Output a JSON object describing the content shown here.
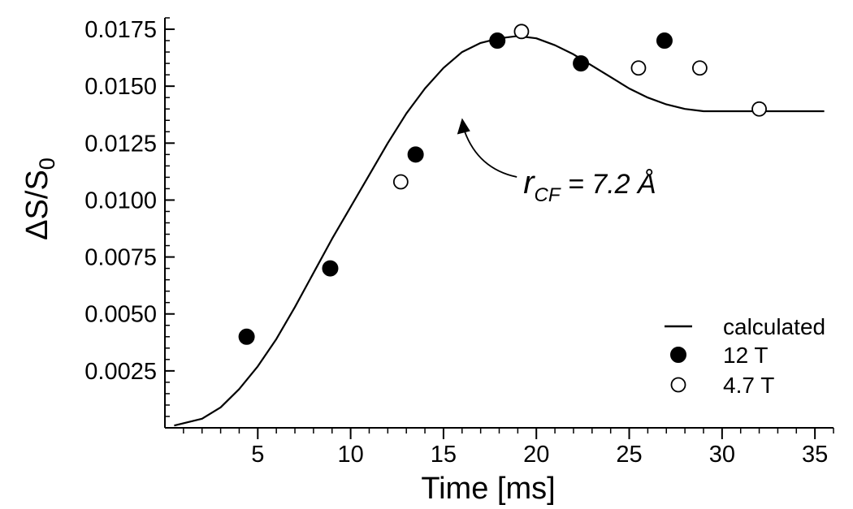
{
  "chart_data": {
    "type": "scatter",
    "title": "",
    "xlabel": "Time [ms]",
    "ylabel": {
      "main": "ΔS/S",
      "sub": "0"
    },
    "xlim": [
      0,
      36
    ],
    "ylim": [
      0,
      0.018
    ],
    "x_ticks": [
      5,
      10,
      15,
      20,
      25,
      30,
      35
    ],
    "x_tick_labels": [
      "5",
      "10",
      "15",
      "20",
      "25",
      "30",
      "35"
    ],
    "y_ticks": [
      0.0025,
      0.005,
      0.0075,
      0.01,
      0.0125,
      0.015,
      0.0175
    ],
    "y_tick_labels": [
      "0.0025",
      "0.0050",
      "0.0075",
      "0.0100",
      "0.0125",
      "0.0150",
      "0.0175"
    ],
    "grid": false,
    "legend_position": "bottom-right",
    "series": [
      {
        "name": "calculated",
        "kind": "line",
        "x": [
          0.5,
          2,
          3,
          4,
          5,
          6,
          7,
          8,
          9,
          10,
          11,
          12,
          13,
          14,
          15,
          16,
          17,
          18,
          19,
          20,
          21,
          22,
          23,
          24,
          25,
          26,
          27,
          28,
          29,
          30,
          31,
          32,
          33,
          34,
          35.5
        ],
        "y": [
          0.0001,
          0.0004,
          0.0009,
          0.0017,
          0.0027,
          0.0039,
          0.0053,
          0.0068,
          0.0083,
          0.0097,
          0.0111,
          0.0125,
          0.0138,
          0.0149,
          0.0158,
          0.0165,
          0.0169,
          0.0171,
          0.0172,
          0.0171,
          0.0168,
          0.0164,
          0.0159,
          0.0154,
          0.0149,
          0.0145,
          0.0142,
          0.014,
          0.0139,
          0.0139,
          0.0139,
          0.0139,
          0.0139,
          0.0139,
          0.0139
        ]
      },
      {
        "name": "12 T",
        "kind": "scatter",
        "marker": "filled-circle",
        "x": [
          4.4,
          8.9,
          13.5,
          17.9,
          22.4,
          26.9
        ],
        "y": [
          0.004,
          0.007,
          0.012,
          0.017,
          0.016,
          0.017
        ]
      },
      {
        "name": "4.7 T",
        "kind": "scatter",
        "marker": "open-circle",
        "x": [
          12.7,
          19.2,
          25.5,
          28.8,
          32.0
        ],
        "y": [
          0.0108,
          0.0174,
          0.0158,
          0.0158,
          0.014
        ]
      }
    ],
    "annotations": [
      {
        "main": "r",
        "sub": "CF",
        "rest": " = 7.2 Å",
        "text_x": 19.3,
        "text_y": 0.0103,
        "arrow_to_x": 16.0,
        "arrow_to_y": 0.0136
      }
    ]
  },
  "colors": {
    "foreground": "#000000",
    "background": "#ffffff"
  }
}
